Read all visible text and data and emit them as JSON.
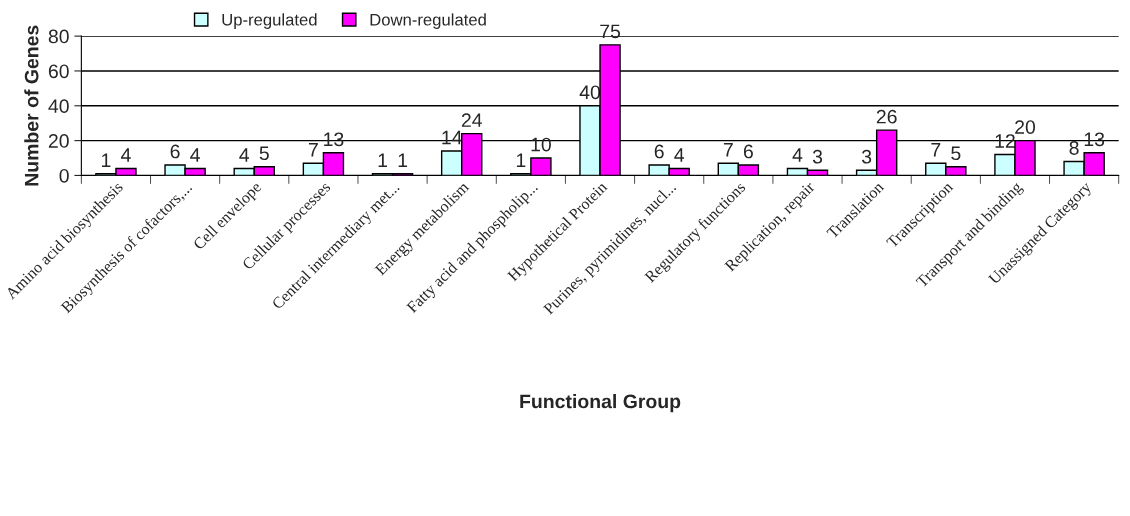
{
  "chart_data": {
    "type": "bar",
    "xlabel": "Functional Group",
    "ylabel": "Number of Genes",
    "categories": [
      "Amino acid biosynthesis",
      "Biosynthesis of cofactors,...",
      "Cell envelope",
      "Cellular processes",
      "Central intermediary met...",
      "Energy metabolism",
      "Fatty acid and phospholip...",
      "Hypothetical Protein",
      "Purines, pyrimidines, nucl...",
      "Regulatory functions",
      "Replication, repair",
      "Translation",
      "Transcription",
      "Transport and binding",
      "Unassigned Category"
    ],
    "series": [
      {
        "name": "Up-regulated",
        "color": "#ccffff",
        "values": [
          1,
          6,
          4,
          7,
          1,
          14,
          1,
          40,
          6,
          7,
          4,
          3,
          7,
          12,
          8
        ]
      },
      {
        "name": "Down-regulated",
        "color": "#ff00ff",
        "values": [
          4,
          4,
          5,
          13,
          1,
          24,
          10,
          75,
          4,
          6,
          3,
          26,
          5,
          20,
          13
        ]
      }
    ],
    "ylim": [
      0,
      80
    ],
    "yticks": [
      0,
      20,
      40,
      60,
      80
    ],
    "grid": "y",
    "legend": "top",
    "data_labels": true
  }
}
